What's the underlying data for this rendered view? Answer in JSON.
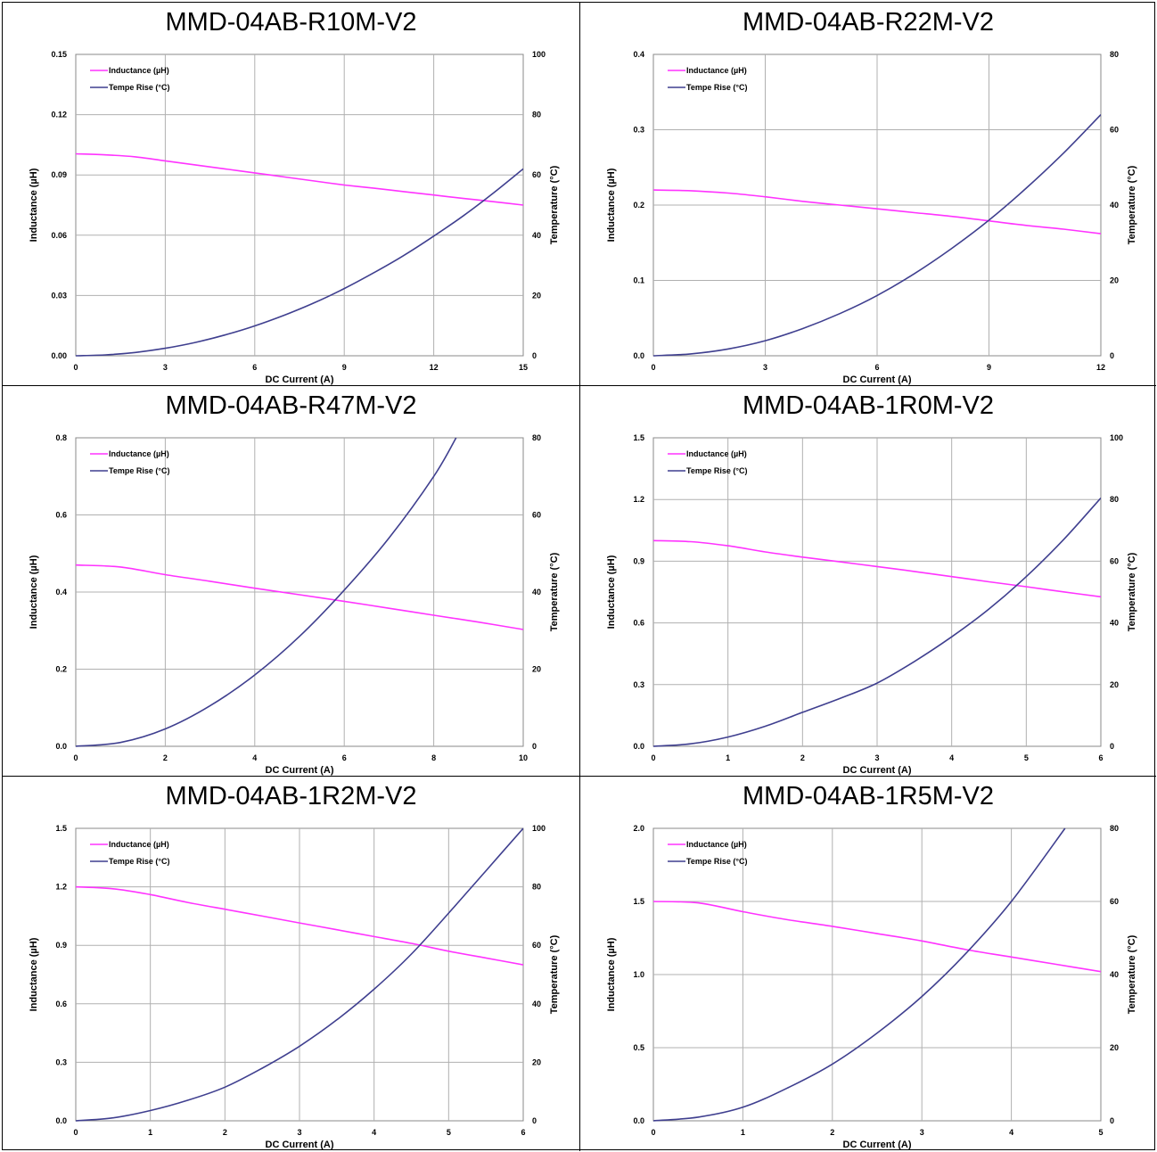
{
  "chart_data": [
    {
      "type": "line",
      "title": "MMD-04AB-R10M-V2",
      "xlabel": "DC Current (A)",
      "ylabel": "Inductance (µH)",
      "y2label": "Temperature (°C)",
      "xlim": [
        0,
        15
      ],
      "xticks": [
        "0",
        "3",
        "6",
        "9",
        "12",
        "15"
      ],
      "ylim": [
        0,
        0.15
      ],
      "yticks": [
        "0.00",
        "0.03",
        "0.06",
        "0.09",
        "0.12",
        "0.15"
      ],
      "y2lim": [
        0,
        100
      ],
      "y2ticks": [
        "0",
        "20",
        "40",
        "60",
        "80",
        "100"
      ],
      "legend": "top-left",
      "grid": true,
      "series": [
        {
          "name": "Inductance (µH)",
          "axis": "left",
          "color": "#ff33ff",
          "x": [
            0,
            1,
            2,
            3,
            4,
            5,
            6,
            7,
            8,
            9,
            10,
            11,
            12,
            13,
            14,
            15
          ],
          "y": [
            0.1005,
            0.1,
            0.099,
            0.097,
            0.095,
            0.093,
            0.091,
            0.089,
            0.087,
            0.085,
            0.0834,
            0.0817,
            0.08,
            0.0783,
            0.0767,
            0.075
          ]
        },
        {
          "name": "Tempe Rise (°C)",
          "axis": "right",
          "color": "#3f3f8f",
          "x": [
            0,
            1,
            2,
            3,
            4,
            5,
            6,
            7,
            8,
            9,
            10,
            11,
            12,
            13,
            14,
            15
          ],
          "y": [
            0,
            0.3,
            1.1,
            2.5,
            4.4,
            6.9,
            9.9,
            13.5,
            17.6,
            22.3,
            27.6,
            33.3,
            39.7,
            46.5,
            54,
            62
          ]
        }
      ]
    },
    {
      "type": "line",
      "title": "MMD-04AB-R22M-V2",
      "xlabel": "DC Current (A)",
      "ylabel": "Inductance (µH)",
      "y2label": "Temperature (°C)",
      "xlim": [
        0,
        12
      ],
      "xticks": [
        "0",
        "3",
        "6",
        "9",
        "12"
      ],
      "ylim": [
        0,
        0.4
      ],
      "yticks": [
        "0.0",
        "0.1",
        "0.2",
        "0.3",
        "0.4"
      ],
      "y2lim": [
        0,
        80
      ],
      "y2ticks": [
        "0",
        "20",
        "40",
        "60",
        "80"
      ],
      "legend": "top-left",
      "grid": true,
      "series": [
        {
          "name": "Inductance (µH)",
          "axis": "left",
          "color": "#ff33ff",
          "x": [
            0,
            1,
            2,
            3,
            4,
            5,
            6,
            7,
            8,
            9,
            10,
            11,
            12
          ],
          "y": [
            0.22,
            0.219,
            0.216,
            0.211,
            0.205,
            0.2,
            0.195,
            0.19,
            0.185,
            0.179,
            0.173,
            0.168,
            0.162
          ]
        },
        {
          "name": "Tempe Rise (°C)",
          "axis": "right",
          "color": "#3f3f8f",
          "x": [
            0,
            1,
            2,
            3,
            4,
            5,
            6,
            7,
            8,
            9,
            10,
            11,
            12
          ],
          "y": [
            0,
            0.5,
            1.8,
            4,
            7.2,
            11.2,
            16,
            21.8,
            28.5,
            36,
            44.5,
            53.8,
            64
          ]
        }
      ]
    },
    {
      "type": "line",
      "title": "MMD-04AB-R47M-V2",
      "xlabel": "DC Current (A)",
      "ylabel": "Inductance (µH)",
      "y2label": "Temperature (°C)",
      "xlim": [
        0,
        10
      ],
      "xticks": [
        "0",
        "2",
        "4",
        "6",
        "8",
        "10"
      ],
      "ylim": [
        0,
        0.8
      ],
      "yticks": [
        "0.0",
        "0.2",
        "0.4",
        "0.6",
        "0.8"
      ],
      "y2lim": [
        0,
        80
      ],
      "y2ticks": [
        "0",
        "20",
        "40",
        "60",
        "80"
      ],
      "legend": "top-left",
      "grid": true,
      "series": [
        {
          "name": "Inductance (µH)",
          "axis": "left",
          "color": "#ff33ff",
          "x": [
            0,
            1,
            2,
            3,
            4,
            5,
            6,
            7,
            8,
            9,
            10
          ],
          "y": [
            0.47,
            0.465,
            0.445,
            0.428,
            0.41,
            0.393,
            0.376,
            0.358,
            0.34,
            0.322,
            0.303
          ]
        },
        {
          "name": "Tempe Rise (°C)",
          "axis": "right",
          "color": "#3f3f8f",
          "x": [
            0,
            1,
            2,
            3,
            4,
            5,
            6,
            7,
            8,
            8.5
          ],
          "y": [
            0,
            1,
            4.5,
            10.5,
            18.5,
            28.5,
            40.5,
            54,
            70,
            80
          ]
        }
      ]
    },
    {
      "type": "line",
      "title": "MMD-04AB-1R0M-V2",
      "xlabel": "DC Current (A)",
      "ylabel": "Inductance (µH)",
      "y2label": "Temperature (°C)",
      "xlim": [
        0,
        6
      ],
      "xticks": [
        "0",
        "1",
        "2",
        "3",
        "4",
        "5",
        "6"
      ],
      "ylim": [
        0,
        1.5
      ],
      "yticks": [
        "0.0",
        "0.3",
        "0.6",
        "0.9",
        "1.2",
        "1.5"
      ],
      "y2lim": [
        0,
        100
      ],
      "y2ticks": [
        "0",
        "20",
        "40",
        "60",
        "80",
        "100"
      ],
      "legend": "top-left",
      "grid": true,
      "series": [
        {
          "name": "Inductance (µH)",
          "axis": "left",
          "color": "#ff33ff",
          "x": [
            0,
            0.5,
            1,
            1.5,
            2,
            2.5,
            3,
            3.5,
            4,
            4.5,
            5,
            5.5,
            6
          ],
          "y": [
            1,
            0.995,
            0.975,
            0.945,
            0.92,
            0.897,
            0.874,
            0.85,
            0.825,
            0.8,
            0.776,
            0.751,
            0.727
          ]
        },
        {
          "name": "Tempe Rise (°C)",
          "axis": "right",
          "color": "#3f3f8f",
          "x": [
            0,
            0.5,
            1,
            1.5,
            2,
            2.5,
            3,
            3.5,
            4,
            4.5,
            5,
            5.5,
            6
          ],
          "y": [
            0,
            0.8,
            3,
            6.5,
            11,
            15.5,
            20.5,
            27.5,
            35.5,
            44.5,
            55,
            67,
            80.5
          ]
        }
      ]
    },
    {
      "type": "line",
      "title": "MMD-04AB-1R2M-V2",
      "xlabel": "DC Current (A)",
      "ylabel": "Inductance (µH)",
      "y2label": "Temperature (°C)",
      "xlim": [
        0,
        6
      ],
      "xticks": [
        "0",
        "1",
        "2",
        "3",
        "4",
        "5",
        "6"
      ],
      "ylim": [
        0,
        1.5
      ],
      "yticks": [
        "0.0",
        "0.3",
        "0.6",
        "0.9",
        "1.2",
        "1.5"
      ],
      "y2lim": [
        0,
        100
      ],
      "y2ticks": [
        "0",
        "20",
        "40",
        "60",
        "80",
        "100"
      ],
      "legend": "top-left",
      "grid": true,
      "series": [
        {
          "name": "Inductance (µH)",
          "axis": "left",
          "color": "#ff33ff",
          "x": [
            0,
            0.5,
            1,
            1.5,
            2,
            2.5,
            3,
            3.5,
            4,
            4.5,
            5,
            5.5,
            6
          ],
          "y": [
            1.2,
            1.19,
            1.16,
            1.12,
            1.085,
            1.05,
            1.015,
            0.98,
            0.945,
            0.91,
            0.87,
            0.835,
            0.8
          ]
        },
        {
          "name": "Tempe Rise (°C)",
          "axis": "right",
          "color": "#3f3f8f",
          "x": [
            0,
            0.5,
            1,
            1.5,
            2,
            2.5,
            3,
            3.5,
            4,
            4.5,
            5,
            5.5,
            6
          ],
          "y": [
            0,
            1,
            3.5,
            7,
            11.5,
            18,
            25.5,
            34.5,
            45,
            57,
            71,
            85.5,
            100
          ]
        }
      ]
    },
    {
      "type": "line",
      "title": "MMD-04AB-1R5M-V2",
      "xlabel": "DC Current (A)",
      "ylabel": "Inductance (µH)",
      "y2label": "Temperature (°C)",
      "xlim": [
        0,
        5
      ],
      "xticks": [
        "0",
        "1",
        "2",
        "3",
        "4",
        "5"
      ],
      "ylim": [
        0,
        2
      ],
      "yticks": [
        "0.0",
        "0.5",
        "1.0",
        "1.5",
        "2.0"
      ],
      "y2lim": [
        0,
        80
      ],
      "y2ticks": [
        "0",
        "20",
        "40",
        "60",
        "80"
      ],
      "legend": "top-left",
      "grid": true,
      "series": [
        {
          "name": "Inductance (µH)",
          "axis": "left",
          "color": "#ff33ff",
          "x": [
            0,
            0.5,
            1,
            1.5,
            2,
            2.5,
            3,
            3.5,
            4,
            4.5,
            5
          ],
          "y": [
            1.5,
            1.49,
            1.43,
            1.375,
            1.33,
            1.28,
            1.23,
            1.17,
            1.12,
            1.07,
            1.02
          ]
        },
        {
          "name": "Tempe Rise (°C)",
          "axis": "right",
          "color": "#3f3f8f",
          "x": [
            0,
            0.5,
            1,
            1.5,
            2,
            2.5,
            3,
            3.5,
            4,
            4.6
          ],
          "y": [
            0,
            1,
            3.7,
            9,
            15.5,
            24,
            34,
            46,
            60,
            80
          ]
        }
      ]
    }
  ]
}
